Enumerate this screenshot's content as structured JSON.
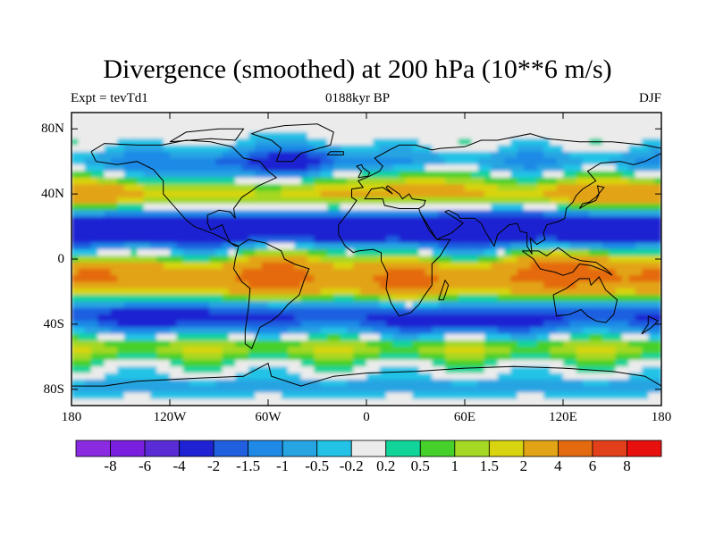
{
  "chart_data": {
    "type": "heatmap",
    "title": "Divergence (smoothed) at 200 hPa (10**6 m/s)",
    "subtitle_left": "Expt = tevTd1",
    "subtitle_center": "0188kyr BP",
    "subtitle_right": "DJF",
    "x_ticks": [
      "180",
      "120W",
      "60W",
      "0",
      "60E",
      "120E",
      "180"
    ],
    "x_tick_values": [
      -180,
      -120,
      -60,
      0,
      60,
      120,
      180
    ],
    "y_ticks": [
      "80N",
      "40N",
      "0",
      "40S",
      "80S"
    ],
    "y_tick_values": [
      80,
      40,
      0,
      -40,
      -80
    ],
    "xlim": [
      -180,
      180
    ],
    "ylim": [
      -90,
      90
    ],
    "levels": [
      "-8",
      "-6",
      "-4",
      "-2",
      "-1.5",
      "-1",
      "-0.5",
      "-0.2",
      "0.2",
      "0.5",
      "1",
      "1.5",
      "2",
      "4",
      "6",
      "8"
    ],
    "level_values": [
      -8,
      -6,
      -4,
      -2,
      -1.5,
      -1,
      -0.5,
      -0.2,
      0.2,
      0.5,
      1,
      1.5,
      2,
      4,
      6,
      8
    ],
    "colors": [
      "#8a2be2",
      "#7a1fe0",
      "#5a2cd6",
      "#1e22d2",
      "#1f5fe0",
      "#1e8ae6",
      "#27a4e2",
      "#22c3e6",
      "#ebebeb",
      "#10d49a",
      "#46d02a",
      "#a4d822",
      "#d8d410",
      "#e2a414",
      "#e46a10",
      "#e2401a",
      "#e80f0f"
    ]
  }
}
